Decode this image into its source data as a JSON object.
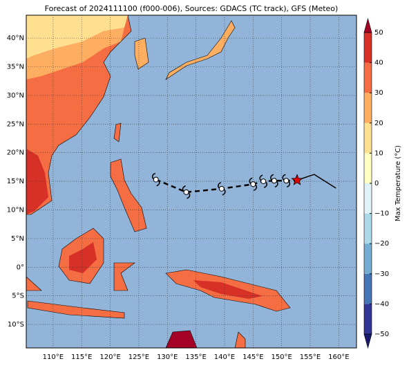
{
  "title": "Forecast of 2024111100 (f000-006), Sources: GDACS (TC track), GFS (Meteo)",
  "map": {
    "xlim": [
      105.3,
      163.1
    ],
    "ylim": [
      -14.1,
      44.0
    ],
    "xticks": [
      {
        "value": 110,
        "label": "110°E"
      },
      {
        "value": 115,
        "label": "115°E"
      },
      {
        "value": 120,
        "label": "120°E"
      },
      {
        "value": 125,
        "label": "125°E"
      },
      {
        "value": 130,
        "label": "130°E"
      },
      {
        "value": 135,
        "label": "135°E"
      },
      {
        "value": 140,
        "label": "140°E"
      },
      {
        "value": 145,
        "label": "145°E"
      },
      {
        "value": 150,
        "label": "150°E"
      },
      {
        "value": 155,
        "label": "155°E"
      },
      {
        "value": 160,
        "label": "160°E"
      }
    ],
    "yticks": [
      {
        "value": 40,
        "label": "40°N"
      },
      {
        "value": 35,
        "label": "35°N"
      },
      {
        "value": 30,
        "label": "30°N"
      },
      {
        "value": 25,
        "label": "25°N"
      },
      {
        "value": 20,
        "label": "20°N"
      },
      {
        "value": 15,
        "label": "15°N"
      },
      {
        "value": 10,
        "label": "10°N"
      },
      {
        "value": 5,
        "label": "5°N"
      },
      {
        "value": 0,
        "label": "0°"
      },
      {
        "value": -5,
        "label": "5°S"
      },
      {
        "value": -10,
        "label": "10°S"
      }
    ],
    "grid": true
  },
  "track": {
    "lon": [
      128.0,
      133.3,
      139.5,
      145.0,
      146.8,
      148.7,
      150.8,
      152.7
    ],
    "lat": [
      15.3,
      13.1,
      13.7,
      14.5,
      15.0,
      15.1,
      15.1,
      15.2
    ],
    "forecast_lon": [
      152.7,
      155.7,
      159.5
    ],
    "forecast_lat": [
      15.2,
      16.2,
      13.8
    ]
  },
  "colorbar": {
    "label": "Max Temperature (°C)",
    "lim": [
      -50,
      50
    ],
    "ticks": [
      50,
      40,
      30,
      20,
      10,
      0,
      {
        "value": -10,
        "label": "−10"
      },
      {
        "value": -20,
        "label": "−20"
      },
      {
        "value": -30,
        "label": "−30"
      },
      {
        "value": -40,
        "label": "−40"
      },
      {
        "value": -50,
        "label": "−50"
      }
    ],
    "colors": [
      "#313695",
      "#4575b4",
      "#74add1",
      "#abd9e9",
      "#e0f3f8",
      "#ffffbf",
      "#fee090",
      "#fdae61",
      "#f46d43",
      "#d73027"
    ],
    "under_color": "#1a1a6e",
    "over_color": "#a50026"
  }
}
